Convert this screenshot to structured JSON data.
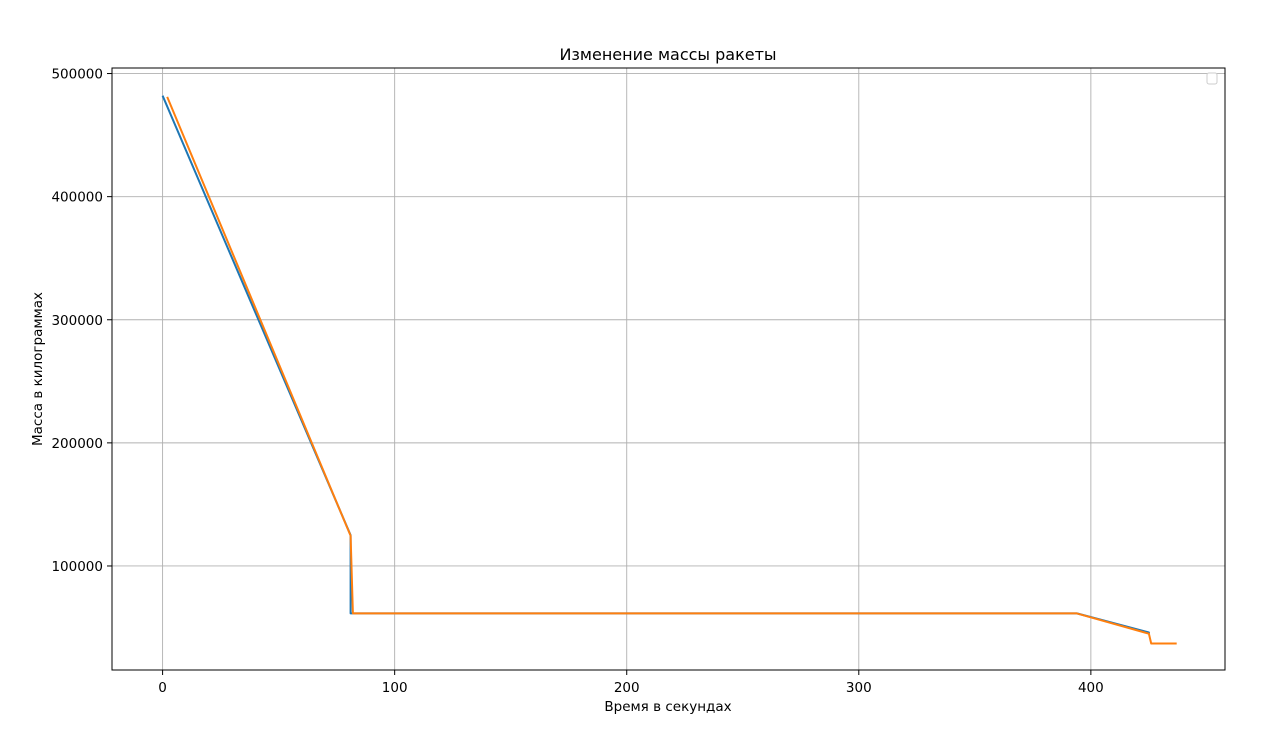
{
  "chart_data": {
    "type": "line",
    "title": "Изменение массы ракеты",
    "xlabel": "Время в секундах",
    "ylabel": "Масса в килограммах",
    "xlim": [
      -21.8,
      457.8
    ],
    "ylim": [
      15500,
      504500
    ],
    "x_ticks": [
      0,
      100,
      200,
      300,
      400
    ],
    "x_tick_labels": [
      "0",
      "100",
      "200",
      "300",
      "400"
    ],
    "y_ticks": [
      100000,
      200000,
      300000,
      400000,
      500000
    ],
    "y_tick_labels": [
      "100000",
      "200000",
      "300000",
      "400000",
      "500000"
    ],
    "grid": true,
    "legend": "top-right",
    "series": [
      {
        "color": "#1f77b4",
        "points": [
          [
            0,
            482000
          ],
          [
            81,
            125000
          ],
          [
            81,
            61500
          ],
          [
            394,
            61500
          ],
          [
            425,
            46000
          ],
          [
            425,
            45000
          ]
        ]
      },
      {
        "color": "#ff7f0e",
        "points": [
          [
            2,
            481000
          ],
          [
            81,
            124500
          ],
          [
            82,
            61500
          ],
          [
            394,
            61500
          ],
          [
            425,
            45000
          ],
          [
            426,
            37000
          ],
          [
            437,
            37000
          ]
        ]
      }
    ]
  }
}
